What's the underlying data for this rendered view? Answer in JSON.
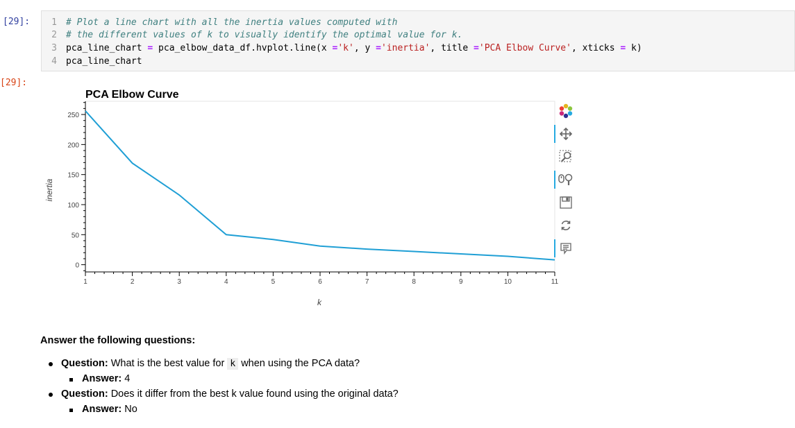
{
  "notebook": {
    "input_prompt": "[29]:",
    "output_prompt": "[29]:",
    "code_lines": [
      {
        "num": "1",
        "text": "# Plot a line chart with all the inertia values computed with"
      },
      {
        "num": "2",
        "text": "# the different values of k to visually identify the optimal value for k."
      },
      {
        "num": "3",
        "text": "pca_line_chart = pca_elbow_data_df.hvplot.line(x ='k', y ='inertia', title ='PCA Elbow Curve', xticks = k)"
      },
      {
        "num": "4",
        "text": "pca_line_chart"
      }
    ]
  },
  "chart_data": {
    "type": "line",
    "title": "PCA Elbow Curve",
    "xlabel": "k",
    "ylabel": "inertia",
    "x": [
      1,
      2,
      3,
      4,
      5,
      6,
      7,
      8,
      9,
      10,
      11
    ],
    "series": [
      {
        "values": [
          256,
          169,
          116,
          50,
          42,
          31,
          26,
          22,
          18,
          14,
          8
        ],
        "color": "#1f9fd5"
      }
    ],
    "xticks": [
      "1",
      "2",
      "3",
      "4",
      "5",
      "6",
      "7",
      "8",
      "9",
      "10",
      "11"
    ],
    "yticks": [
      "0",
      "50",
      "100",
      "150",
      "200",
      "250"
    ],
    "xlim": [
      1,
      11
    ],
    "ylim": [
      -12,
      272
    ],
    "grid": false
  },
  "toolbar": {
    "tools": [
      "bokeh-logo-icon",
      "pan-icon",
      "box-zoom-icon",
      "wheel-zoom-icon",
      "save-icon",
      "reset-icon",
      "hover-icon"
    ]
  },
  "answers": {
    "heading": "Answer the following questions:",
    "q1_label": "Question:",
    "q1_text_before": "What is the best value for",
    "q1_code": "k",
    "q1_text_after": "when using the PCA data?",
    "a1_label": "Answer:",
    "a1_value": "4",
    "q2_label": "Question:",
    "q2_text": "Does it differ from the best k value found using the original data?",
    "a2_label": "Answer:",
    "a2_value": "No"
  }
}
